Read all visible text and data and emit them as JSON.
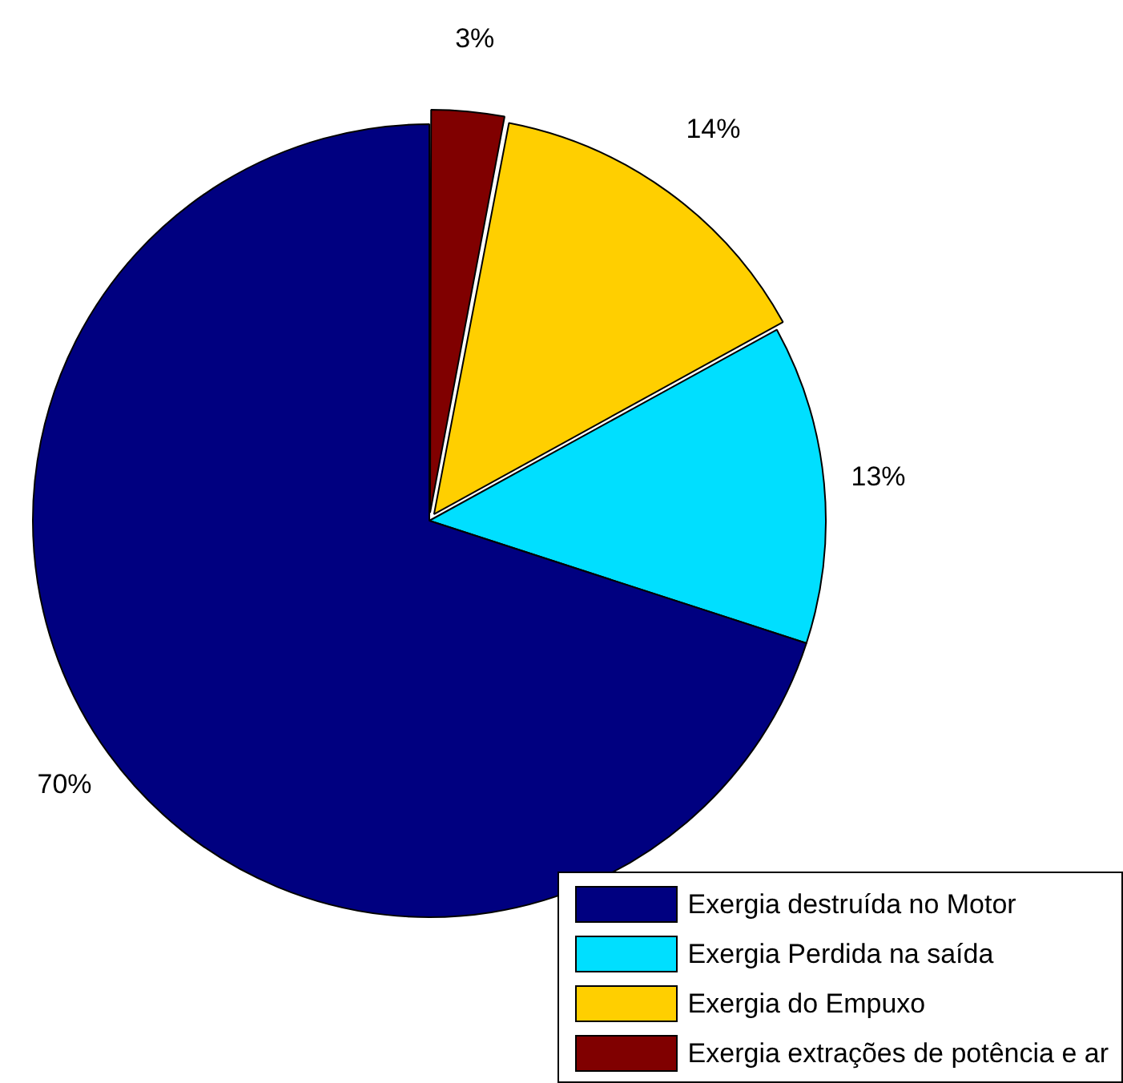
{
  "chart_data": {
    "type": "pie",
    "categories": [
      "Exergia destruída no Motor",
      "Exergia Perdida na saída",
      "Exergia do Empuxo",
      "Exergia extrações de potência e ar"
    ],
    "values": [
      70,
      13,
      14,
      3
    ],
    "colors": [
      "#000080",
      "#00dfff",
      "#ffcf00",
      "#800000"
    ],
    "value_labels": [
      "70%",
      "13%",
      "14%",
      "3%"
    ],
    "legend": "bottom right"
  }
}
